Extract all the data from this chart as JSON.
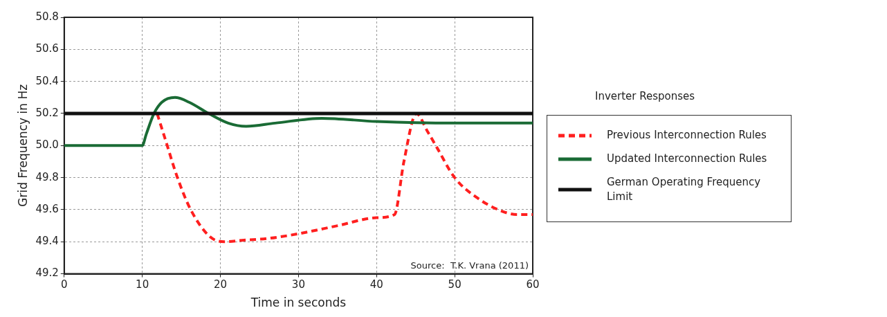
{
  "chart_data": {
    "type": "line",
    "xlabel": "Time in seconds",
    "ylabel": "Grid Frequency in Hz",
    "legend_title": "Inverter Responses",
    "xlim": [
      0,
      60
    ],
    "xticks": [
      0,
      10,
      20,
      30,
      40,
      50,
      60
    ],
    "ylim": [
      49.2,
      50.8
    ],
    "yticks": [
      49.2,
      49.4,
      49.6,
      49.8,
      {
        "value": 50,
        "label": "50.0"
      },
      50.2,
      50.4,
      50.6,
      50.8
    ],
    "grid": true,
    "legend": "right",
    "marker": "none",
    "annotations": [
      "Source:  T.K. Vrana (2011)"
    ],
    "series": [
      {
        "name": "Previous Interconnection Rules",
        "color": "#ff1f1f",
        "line_style": "dashed",
        "x": [
          11.9,
          13,
          14.5,
          16.2,
          18.7,
          20.5,
          23,
          26,
          30,
          35,
          40,
          42.3,
          43.5,
          45.1,
          46.5,
          47.7,
          50,
          53,
          56.1,
          58,
          60
        ],
        "values": [
          50.2,
          50.03,
          49.8,
          49.6,
          49.43,
          49.4,
          49.41,
          49.42,
          49.45,
          49.5,
          49.55,
          49.57,
          49.9,
          50.2,
          50.09,
          49.99,
          49.8,
          49.67,
          49.59,
          49.57,
          49.57
        ]
      },
      {
        "name": "Updated Interconnection Rules",
        "color": "#1a6b35",
        "line_style": "solid",
        "x": [
          0,
          10,
          10.5,
          11.5,
          12.5,
          14.2,
          16,
          18.5,
          21,
          23.3,
          27,
          33,
          40,
          50,
          60
        ],
        "values": [
          50.0,
          50.0,
          50.07,
          50.2,
          50.27,
          50.3,
          50.27,
          50.2,
          50.14,
          50.12,
          50.14,
          50.17,
          50.15,
          50.14,
          50.14
        ]
      },
      {
        "name": "German Operating Frequency Limit",
        "color": "#111111",
        "line_style": "solid",
        "x": [
          0,
          60
        ],
        "values": [
          50.2,
          50.2
        ]
      }
    ]
  }
}
